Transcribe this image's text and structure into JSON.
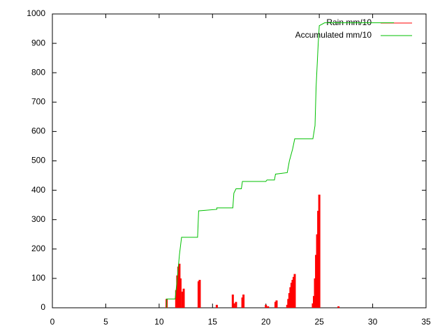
{
  "chart_data": {
    "type": "line",
    "series": [
      {
        "name": "Rain mm/10",
        "color": "#ff0000",
        "style": "impulses",
        "x": [
          10.7,
          11.6,
          11.7,
          11.8,
          11.9,
          12.0,
          12.2,
          12.3,
          13.7,
          13.8,
          15.4,
          16.9,
          17.0,
          17.2,
          17.8,
          17.9,
          20.0,
          20.2,
          20.9,
          21.0,
          22.0,
          22.1,
          22.2,
          22.3,
          22.4,
          22.5,
          22.6,
          22.7,
          24.4,
          24.5,
          24.6,
          24.7,
          24.8,
          24.9,
          25.0,
          26.8
        ],
        "values": [
          30,
          60,
          110,
          140,
          150,
          100,
          55,
          65,
          90,
          95,
          10,
          45,
          15,
          20,
          35,
          45,
          10,
          5,
          20,
          25,
          10,
          30,
          50,
          70,
          85,
          95,
          105,
          115,
          15,
          40,
          100,
          180,
          250,
          330,
          385,
          5
        ]
      },
      {
        "name": "Accumulated mm/10",
        "color": "#00c000",
        "style": "lines",
        "x": [
          10.7,
          10.7,
          11.5,
          11.7,
          11.9,
          12.1,
          13.6,
          13.7,
          15.4,
          15.4,
          16.9,
          17.0,
          17.2,
          17.7,
          17.8,
          20.0,
          20.1,
          20.8,
          20.9,
          22.0,
          22.2,
          22.5,
          22.7,
          24.4,
          24.6,
          24.7,
          24.9,
          25.0,
          25.5,
          32.0
        ],
        "values": [
          0,
          30,
          30,
          100,
          180,
          240,
          240,
          330,
          335,
          340,
          340,
          390,
          405,
          405,
          430,
          430,
          435,
          435,
          455,
          460,
          500,
          540,
          575,
          575,
          620,
          750,
          900,
          960,
          970,
          970
        ]
      }
    ],
    "xlim": [
      0,
      35
    ],
    "xticks": [
      0,
      5,
      10,
      15,
      20,
      25,
      30,
      35
    ],
    "ylim": [
      0,
      1000
    ],
    "yticks": [
      0,
      100,
      200,
      300,
      400,
      500,
      600,
      700,
      800,
      900,
      1000
    ],
    "legend": "top-right"
  }
}
